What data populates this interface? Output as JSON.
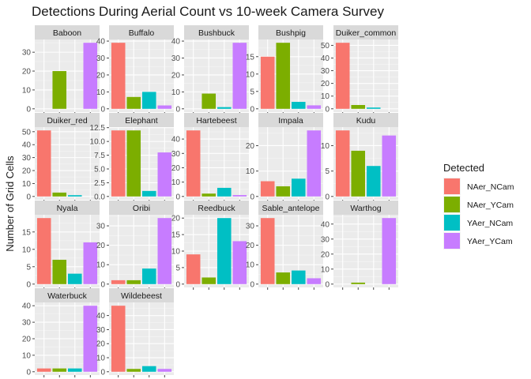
{
  "chart_data": {
    "type": "bar",
    "title": "Detections During Aerial Count vs 10-week Camera Survey",
    "xlabel": "",
    "ylabel": "Number of Grid Cells",
    "legend": {
      "title": "Detected",
      "placement": "right",
      "entries": [
        {
          "name": "NAer_NCam",
          "color": "#F8766D"
        },
        {
          "name": "NAer_YCam",
          "color": "#7CAE00"
        },
        {
          "name": "YAer_NCam",
          "color": "#00BFC4"
        },
        {
          "name": "YAer_YCam",
          "color": "#C77CFF"
        }
      ]
    },
    "categories": [
      "NAer_NCam",
      "NAer_YCam",
      "YAer_NCam",
      "YAer_YCam"
    ],
    "facet_scales": "free_y",
    "grid": true,
    "panels": [
      {
        "name": "Baboon",
        "values": [
          0,
          20,
          0,
          35
        ],
        "ylim": [
          -1.75,
          36.75
        ],
        "yticks": [
          0,
          10,
          20,
          30
        ]
      },
      {
        "name": "Buffalo",
        "values": [
          39,
          7,
          10,
          2
        ],
        "ylim": [
          -1.95,
          40.95
        ],
        "yticks": [
          0,
          10,
          20,
          30,
          40
        ]
      },
      {
        "name": "Bushbuck",
        "values": [
          0,
          9,
          1,
          39
        ],
        "ylim": [
          -1.95,
          40.95
        ],
        "yticks": [
          0,
          10,
          20,
          30,
          40
        ]
      },
      {
        "name": "Bushpig",
        "values": [
          15,
          19,
          2,
          1
        ],
        "ylim": [
          -0.95,
          19.95
        ],
        "yticks": [
          0,
          5,
          10,
          15
        ]
      },
      {
        "name": "Duiker_common",
        "values": [
          52,
          3,
          1,
          0
        ],
        "ylim": [
          -2.6,
          54.6
        ],
        "yticks": [
          0,
          10,
          20,
          30,
          40,
          50
        ]
      },
      {
        "name": "Duiker_red",
        "values": [
          51,
          3,
          1,
          0
        ],
        "ylim": [
          -2.55,
          53.55
        ],
        "yticks": [
          0,
          10,
          20,
          30,
          40,
          50
        ]
      },
      {
        "name": "Elephant",
        "values": [
          12,
          12,
          1,
          8
        ],
        "ylim": [
          -0.6,
          12.6
        ],
        "yticks": [
          0,
          2.5,
          5,
          7.5,
          10,
          12.5
        ],
        "ytick_labels": [
          "0.0",
          "2.5",
          "5.0",
          "7.5",
          "10.0",
          "12.5"
        ]
      },
      {
        "name": "Hartebeest",
        "values": [
          46,
          2,
          6,
          1
        ],
        "ylim": [
          -2.3,
          48.3
        ],
        "yticks": [
          0,
          10,
          20,
          30,
          40
        ]
      },
      {
        "name": "Impala",
        "values": [
          6,
          4,
          7,
          26
        ],
        "ylim": [
          -1.3,
          27.3
        ],
        "yticks": [
          0,
          10,
          20
        ]
      },
      {
        "name": "Kudu",
        "values": [
          13,
          9,
          6,
          12
        ],
        "ylim": [
          -0.65,
          13.65
        ],
        "yticks": [
          0,
          5,
          10
        ]
      },
      {
        "name": "Nyala",
        "values": [
          19,
          7,
          3,
          12
        ],
        "ylim": [
          -0.95,
          19.95
        ],
        "yticks": [
          0,
          5,
          10,
          15
        ]
      },
      {
        "name": "Oribi",
        "values": [
          2,
          2,
          8,
          34
        ],
        "ylim": [
          -1.7,
          35.7
        ],
        "yticks": [
          0,
          10,
          20,
          30
        ]
      },
      {
        "name": "Reedbuck",
        "values": [
          9,
          2,
          20,
          13
        ],
        "ylim": [
          -1.0,
          21.0
        ],
        "yticks": [
          0,
          5,
          10,
          15,
          20
        ]
      },
      {
        "name": "Sable_antelope",
        "values": [
          34,
          6,
          7,
          3
        ],
        "ylim": [
          -1.7,
          35.7
        ],
        "yticks": [
          0,
          10,
          20,
          30
        ]
      },
      {
        "name": "Warthog",
        "values": [
          0,
          1,
          0,
          44
        ],
        "ylim": [
          -2.2,
          46.2
        ],
        "yticks": [
          0,
          10,
          20,
          30,
          40
        ]
      },
      {
        "name": "Waterbuck",
        "values": [
          2,
          2,
          2,
          40
        ],
        "ylim": [
          -2.0,
          42.0
        ],
        "yticks": [
          0,
          10,
          20,
          30,
          40
        ]
      },
      {
        "name": "Wildebeest",
        "values": [
          47,
          2,
          4,
          2
        ],
        "ylim": [
          -2.35,
          49.35
        ],
        "yticks": [
          0,
          10,
          20,
          30,
          40
        ]
      }
    ]
  }
}
